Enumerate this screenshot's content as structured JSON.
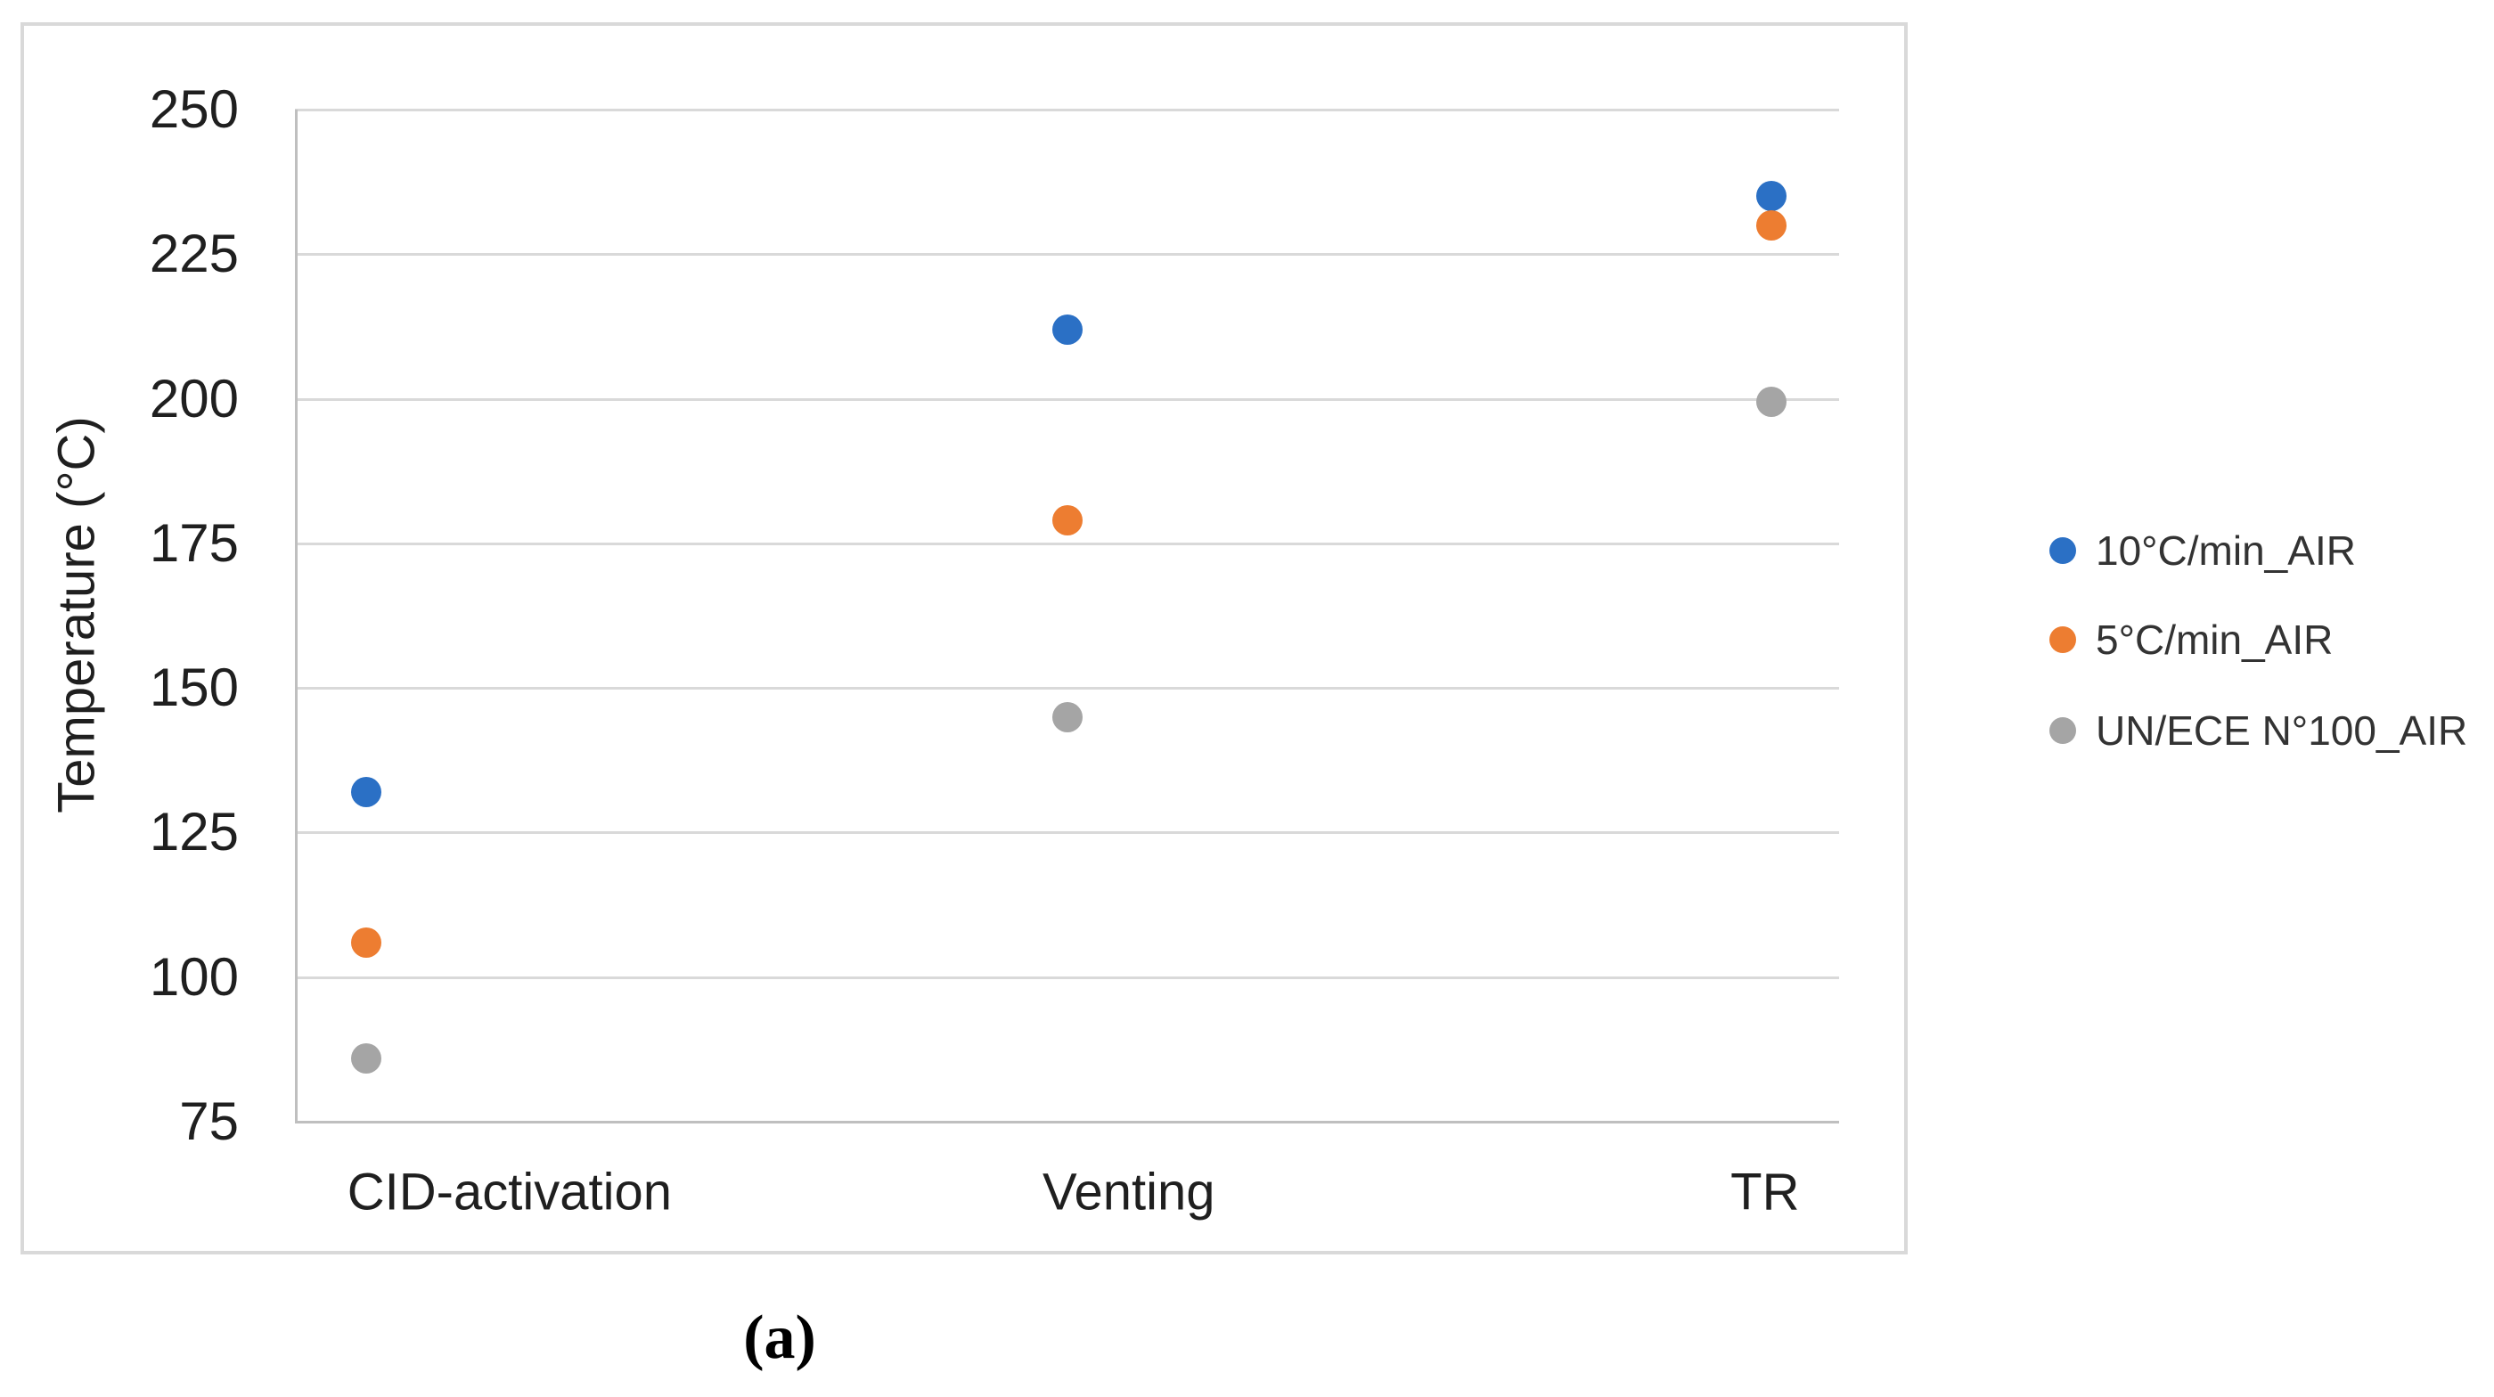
{
  "figure": {
    "caption": "(a)"
  },
  "chart_data": {
    "type": "scatter",
    "title": "",
    "xlabel": "",
    "ylabel": "Temperature (°C)",
    "ylim": [
      75,
      250
    ],
    "yticks": [
      250,
      225,
      200,
      175,
      150,
      125,
      100,
      75
    ],
    "grid": "horizontal-only",
    "legend_position": "right-outside",
    "categories": [
      "CID-activation",
      "Venting",
      "TR"
    ],
    "series": [
      {
        "name": "10°C/min_AIR",
        "color": "#2b70c5",
        "values": [
          132,
          212,
          235
        ]
      },
      {
        "name": "5°C/min_AIR",
        "color": "#ed7d31",
        "values": [
          106,
          179,
          230
        ]
      },
      {
        "name": "UN/ECE N°100_AIR",
        "color": "#a5a5a5",
        "values": [
          86,
          145,
          199.5
        ]
      }
    ]
  }
}
